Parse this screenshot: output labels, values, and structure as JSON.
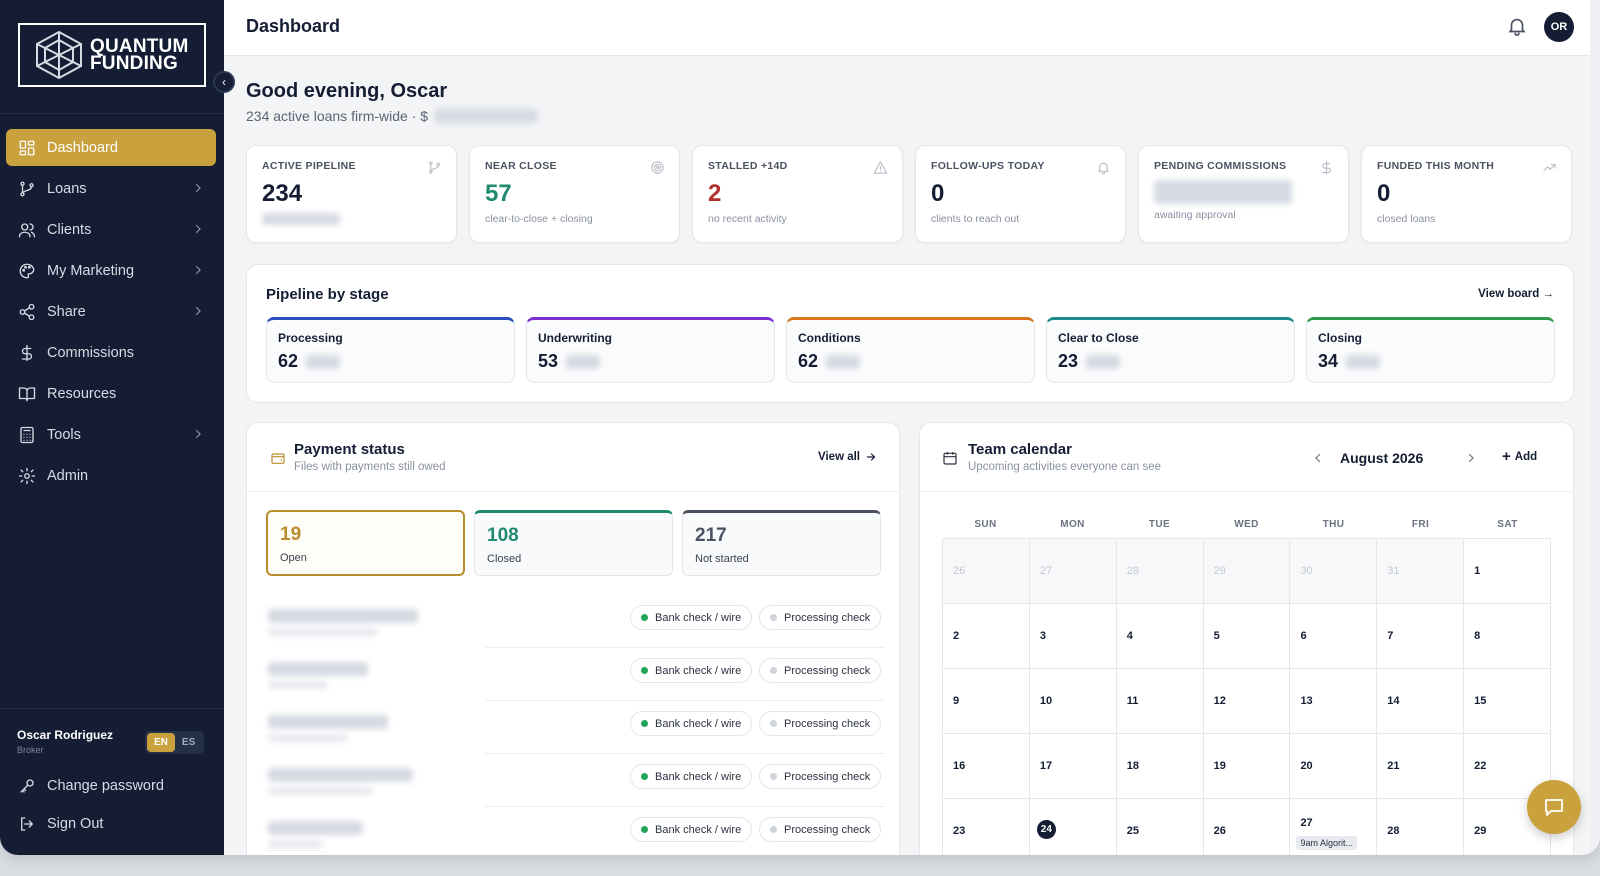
{
  "brand": {
    "line1": "QUANTUM",
    "line2": "FUNDING"
  },
  "header": {
    "title": "Dashboard",
    "avatar_initials": "OR"
  },
  "sidebar": {
    "items": [
      {
        "label": "Dashboard",
        "icon": "grid-icon",
        "active": true,
        "has_children": false
      },
      {
        "label": "Loans",
        "icon": "branch-icon",
        "active": false,
        "has_children": true
      },
      {
        "label": "Clients",
        "icon": "users-icon",
        "active": false,
        "has_children": true
      },
      {
        "label": "My Marketing",
        "icon": "palette-icon",
        "active": false,
        "has_children": true
      },
      {
        "label": "Share",
        "icon": "share-icon",
        "active": false,
        "has_children": true
      },
      {
        "label": "Commissions",
        "icon": "dollar-icon",
        "active": false,
        "has_children": false
      },
      {
        "label": "Resources",
        "icon": "book-icon",
        "active": false,
        "has_children": false
      },
      {
        "label": "Tools",
        "icon": "calculator-icon",
        "active": false,
        "has_children": true
      },
      {
        "label": "Admin",
        "icon": "gear-icon",
        "active": false,
        "has_children": false
      }
    ],
    "user": {
      "name": "Oscar Rodriguez",
      "role": "Broker"
    },
    "languages": [
      "EN",
      "ES"
    ],
    "active_language": "EN",
    "change_password": "Change password",
    "sign_out": "Sign Out"
  },
  "greeting": {
    "title": "Good evening, Oscar",
    "subtitle": "234 active loans firm-wide · $"
  },
  "stats": [
    {
      "label": "ACTIVE PIPELINE",
      "value": "234",
      "sub": "",
      "value_color": "#141d33",
      "icon": "branch-icon"
    },
    {
      "label": "NEAR CLOSE",
      "value": "57",
      "sub": "clear-to-close + closing",
      "value_color": "#1f8a70",
      "icon": "target-icon"
    },
    {
      "label": "STALLED +14D",
      "value": "2",
      "sub": "no recent activity",
      "value_color": "#b3312c",
      "icon": "warning-icon"
    },
    {
      "label": "FOLLOW-UPS TODAY",
      "value": "0",
      "sub": "clients to reach out",
      "value_color": "#141d33",
      "icon": "bell-icon"
    },
    {
      "label": "PENDING COMMISSIONS",
      "value": "",
      "sub": "awaiting approval",
      "value_color": "#141d33",
      "icon": "dollar-icon"
    },
    {
      "label": "FUNDED THIS MONTH",
      "value": "0",
      "sub": "closed loans",
      "value_color": "#141d33",
      "icon": "trend-icon"
    }
  ],
  "pipeline": {
    "title": "Pipeline by stage",
    "view_board": "View board →",
    "stages": [
      {
        "name": "Processing",
        "count": "62",
        "color": "#2b4fbf"
      },
      {
        "name": "Underwriting",
        "count": "53",
        "color": "#7a2fd0"
      },
      {
        "name": "Conditions",
        "count": "62",
        "color": "#d9771e"
      },
      {
        "name": "Clear to Close",
        "count": "23",
        "color": "#1f8a8a"
      },
      {
        "name": "Closing",
        "count": "34",
        "color": "#2f9a4a"
      }
    ]
  },
  "payment": {
    "title": "Payment status",
    "subtitle": "Files with payments still owed",
    "view_all": "View all",
    "tabs": [
      {
        "count": "19",
        "label": "Open",
        "color": "#b98d2a"
      },
      {
        "count": "108",
        "label": "Closed",
        "color": "#1f8a70"
      },
      {
        "count": "217",
        "label": "Not started",
        "color": "#4b5262"
      }
    ],
    "rows": [
      {
        "method": "Bank check / wire",
        "status": "Processing check"
      },
      {
        "method": "Bank check / wire",
        "status": "Processing check"
      },
      {
        "method": "Bank check / wire",
        "status": "Processing check"
      },
      {
        "method": "Bank check / wire",
        "status": "Processing check"
      },
      {
        "method": "Bank check / wire",
        "status": "Processing check"
      }
    ]
  },
  "calendar": {
    "title": "Team calendar",
    "subtitle": "Upcoming activities everyone can see",
    "month": "August 2026",
    "add": "Add",
    "days_of_week": [
      "SUN",
      "MON",
      "TUE",
      "WED",
      "THU",
      "FRI",
      "SAT"
    ],
    "weeks": [
      [
        {
          "d": "26",
          "m": true
        },
        {
          "d": "27",
          "m": true
        },
        {
          "d": "28",
          "m": true
        },
        {
          "d": "29",
          "m": true
        },
        {
          "d": "30",
          "m": true
        },
        {
          "d": "31",
          "m": true
        },
        {
          "d": "1"
        }
      ],
      [
        {
          "d": "2"
        },
        {
          "d": "3"
        },
        {
          "d": "4"
        },
        {
          "d": "5"
        },
        {
          "d": "6"
        },
        {
          "d": "7"
        },
        {
          "d": "8"
        }
      ],
      [
        {
          "d": "9"
        },
        {
          "d": "10"
        },
        {
          "d": "11"
        },
        {
          "d": "12"
        },
        {
          "d": "13"
        },
        {
          "d": "14"
        },
        {
          "d": "15"
        }
      ],
      [
        {
          "d": "16"
        },
        {
          "d": "17"
        },
        {
          "d": "18"
        },
        {
          "d": "19"
        },
        {
          "d": "20"
        },
        {
          "d": "21"
        },
        {
          "d": "22"
        }
      ],
      [
        {
          "d": "23"
        },
        {
          "d": "24",
          "today": true
        },
        {
          "d": "25"
        },
        {
          "d": "26"
        },
        {
          "d": "27",
          "event": "9am Algorit..."
        },
        {
          "d": "28"
        },
        {
          "d": "29"
        }
      ]
    ]
  }
}
